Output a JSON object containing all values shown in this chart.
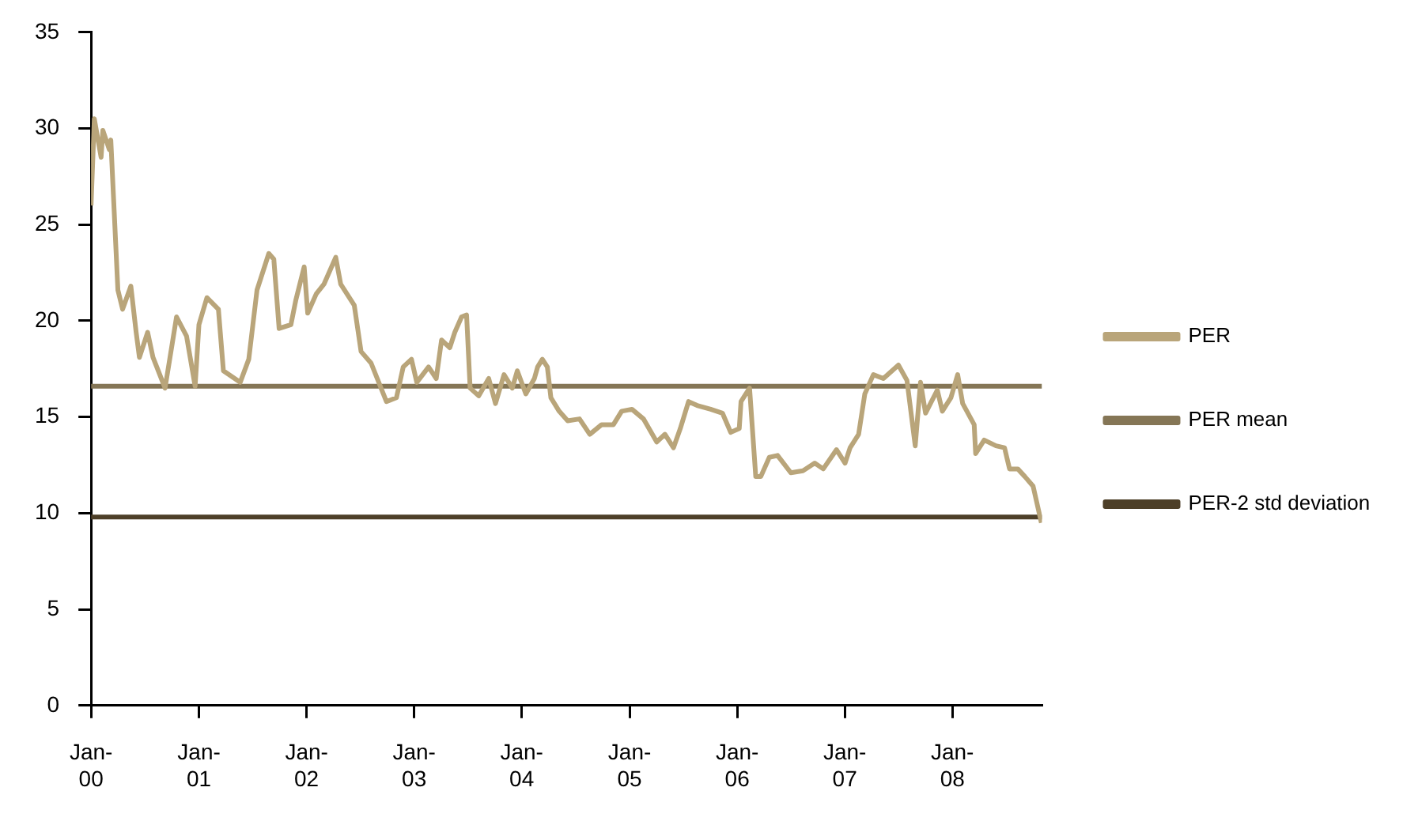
{
  "chart_data": {
    "type": "line",
    "xlim": [
      "2000-01-01",
      "2008-10-31"
    ],
    "ylim": [
      0,
      35
    ],
    "yticks": [
      0,
      5,
      10,
      15,
      20,
      25,
      30,
      35
    ],
    "xticks": [
      {
        "value": "2000-01-01",
        "label": "Jan-00"
      },
      {
        "value": "2001-01-01",
        "label": "Jan-01"
      },
      {
        "value": "2002-01-01",
        "label": "Jan-02"
      },
      {
        "value": "2003-01-01",
        "label": "Jan-03"
      },
      {
        "value": "2004-01-01",
        "label": "Jan-04"
      },
      {
        "value": "2005-01-01",
        "label": "Jan-05"
      },
      {
        "value": "2006-01-01",
        "label": "Jan-06"
      },
      {
        "value": "2007-01-01",
        "label": "Jan-07"
      },
      {
        "value": "2008-01-01",
        "label": "Jan-08"
      }
    ],
    "grid": false,
    "legend": "right",
    "marker": "none",
    "line_style": "solid",
    "series": [
      {
        "name": "PER",
        "color": "#b9a57a",
        "x": [
          "2000-01-01",
          "2000-01-12",
          "2000-02-04",
          "2000-02-10",
          "2000-03-03",
          "2000-03-08",
          "2000-04-01",
          "2000-04-17",
          "2000-05-15",
          "2000-06-02",
          "2000-06-13",
          "2000-07-11",
          "2000-07-29",
          "2000-09-08",
          "2000-10-17",
          "2000-11-20",
          "2000-12-19",
          "2001-01-01",
          "2001-01-28",
          "2001-03-08",
          "2001-03-25",
          "2001-05-21",
          "2001-06-19",
          "2001-07-17",
          "2001-08-26",
          "2001-09-12",
          "2001-09-30",
          "2001-11-09",
          "2001-11-26",
          "2001-12-24",
          "2002-01-05",
          "2002-02-03",
          "2002-03-01",
          "2002-04-10",
          "2002-04-27",
          "2002-06-12",
          "2002-07-05",
          "2002-08-08",
          "2002-09-29",
          "2002-11-02",
          "2002-11-25",
          "2002-12-23",
          "2003-01-10",
          "2003-02-19",
          "2003-03-17",
          "2003-04-04",
          "2003-05-02",
          "2003-05-19",
          "2003-06-11",
          "2003-06-28",
          "2003-07-10",
          "2003-08-08",
          "2003-09-11",
          "2003-10-04",
          "2003-11-02",
          "2003-11-30",
          "2003-12-17",
          "2004-01-15",
          "2004-02-13",
          "2004-02-24",
          "2004-03-11",
          "2004-03-28",
          "2004-04-09",
          "2004-05-07",
          "2004-06-05",
          "2004-07-15",
          "2004-08-19",
          "2004-09-28",
          "2004-11-07",
          "2004-12-05",
          "2005-01-09",
          "2005-02-17",
          "2005-04-03",
          "2005-05-01",
          "2005-05-30",
          "2005-06-22",
          "2005-07-20",
          "2005-08-18",
          "2005-10-03",
          "2005-11-12",
          "2005-12-10",
          "2006-01-08",
          "2006-01-14",
          "2006-02-12",
          "2006-03-05",
          "2006-03-22",
          "2006-04-20",
          "2006-05-18",
          "2006-07-02",
          "2006-08-12",
          "2006-09-21",
          "2006-10-20",
          "2006-12-04",
          "2007-01-02",
          "2007-01-19",
          "2007-02-17",
          "2007-03-10",
          "2007-04-08",
          "2007-05-12",
          "2007-07-02",
          "2007-07-31",
          "2007-08-28",
          "2007-09-15",
          "2007-10-02",
          "2007-11-11",
          "2007-11-28",
          "2007-12-27",
          "2008-01-19",
          "2008-02-05",
          "2008-03-15",
          "2008-03-20",
          "2008-04-18",
          "2008-05-28",
          "2008-06-26",
          "2008-07-13",
          "2008-08-10",
          "2008-09-03",
          "2008-10-01",
          "2008-10-29"
        ],
        "values": [
          26.0,
          30.5,
          28.5,
          29.9,
          28.9,
          29.4,
          21.6,
          20.6,
          21.8,
          19.4,
          18.1,
          19.4,
          18.1,
          16.5,
          20.2,
          19.2,
          16.6,
          19.8,
          21.2,
          20.6,
          17.4,
          16.8,
          18.0,
          21.6,
          23.5,
          23.2,
          19.6,
          19.8,
          21.1,
          22.8,
          20.4,
          21.4,
          21.9,
          23.3,
          21.9,
          20.8,
          18.4,
          17.8,
          15.8,
          16.0,
          17.6,
          18.0,
          16.8,
          17.6,
          17.0,
          19.0,
          18.6,
          19.4,
          20.2,
          20.3,
          16.5,
          16.1,
          17.0,
          15.7,
          17.2,
          16.5,
          17.4,
          16.2,
          17.0,
          17.6,
          18.0,
          17.6,
          16.0,
          15.3,
          14.8,
          14.9,
          14.1,
          14.6,
          14.6,
          15.3,
          15.4,
          14.9,
          13.7,
          14.1,
          13.4,
          14.4,
          15.8,
          15.6,
          15.4,
          15.2,
          14.2,
          14.4,
          15.8,
          16.5,
          11.9,
          11.9,
          12.9,
          13.0,
          12.1,
          12.2,
          12.6,
          12.3,
          13.3,
          12.6,
          13.4,
          14.1,
          16.2,
          17.2,
          17.0,
          17.7,
          16.9,
          13.5,
          16.8,
          15.2,
          16.4,
          15.3,
          16.0,
          17.2,
          15.7,
          14.6,
          13.1,
          13.8,
          13.5,
          13.4,
          12.3,
          12.3,
          11.9,
          11.4,
          9.5
        ]
      },
      {
        "name": "PER mean",
        "color": "#857656",
        "x": [
          "2000-01-01",
          "2008-10-31"
        ],
        "values": [
          16.6,
          16.6
        ]
      },
      {
        "name": "PER-2 std deviation",
        "color": "#4d3f28",
        "x": [
          "2000-01-01",
          "2008-10-31"
        ],
        "values": [
          9.8,
          9.8
        ]
      }
    ]
  }
}
